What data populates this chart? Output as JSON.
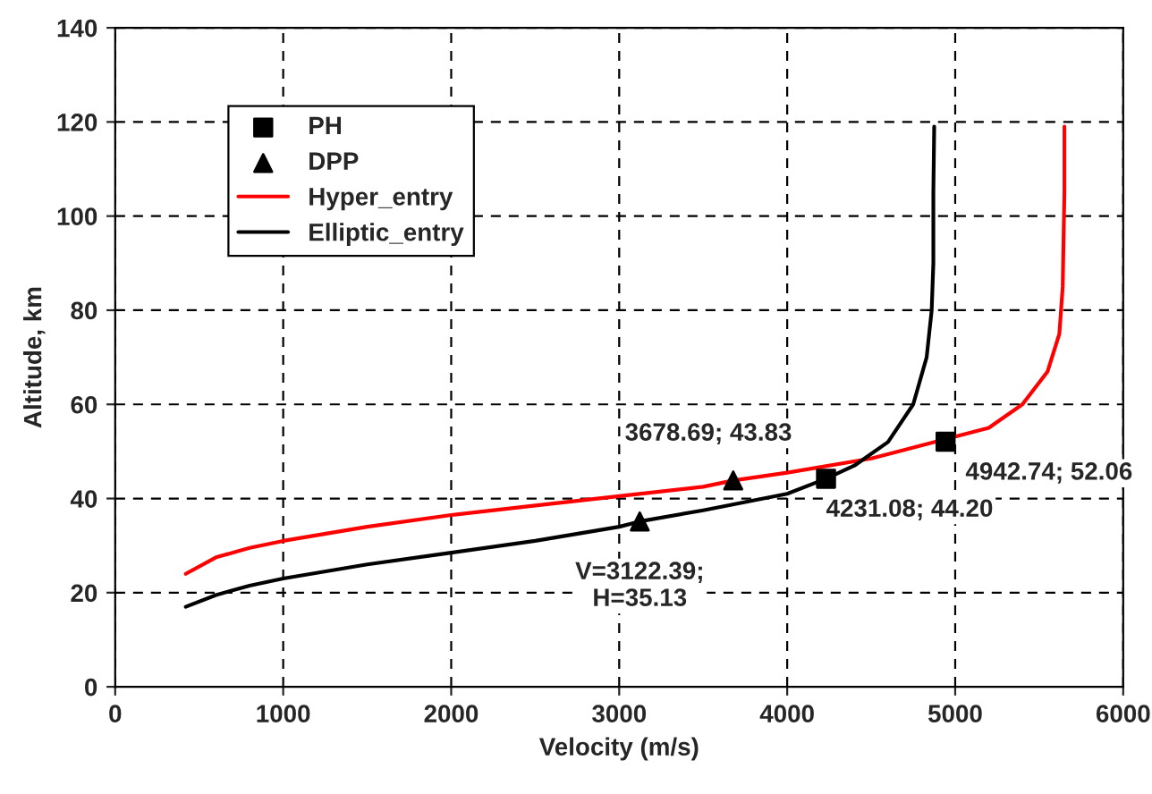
{
  "chart_data": {
    "type": "line",
    "xlabel": "Velocity (m/s)",
    "ylabel": "Altitude, km",
    "xlim": [
      0,
      6000
    ],
    "xticks": [
      0,
      1000,
      2000,
      3000,
      4000,
      5000,
      6000
    ],
    "ylim": [
      0,
      140
    ],
    "yticks": [
      0,
      20,
      40,
      60,
      80,
      100,
      120,
      140
    ],
    "grid": true,
    "legend": "top left",
    "series": [
      {
        "name": "PH",
        "type": "scatter",
        "marker": "square",
        "color": "#000000",
        "x": [
          4231.08,
          4942.74
        ],
        "values": [
          44.2,
          52.06
        ]
      },
      {
        "name": "DPP",
        "type": "scatter",
        "marker": "triangle",
        "color": "#000000",
        "x": [
          3122.39,
          3678.69
        ],
        "values": [
          35.13,
          43.83
        ]
      },
      {
        "name": "Hyper_entry",
        "color": "#ff0000",
        "x": [
          420,
          600,
          800,
          1000,
          1500,
          2000,
          2500,
          3000,
          3500,
          3678.69,
          4000,
          4500,
          5200,
          5400,
          5550,
          5620,
          5640,
          5645,
          5650,
          5650
        ],
        "values": [
          24,
          27.5,
          29.5,
          31,
          34,
          36.5,
          38.5,
          40.5,
          42.5,
          43.83,
          45.5,
          48.5,
          55,
          60,
          67,
          75,
          85,
          95,
          105,
          119
        ]
      },
      {
        "name": "Elliptic_entry",
        "color": "#000000",
        "x": [
          420,
          600,
          800,
          1000,
          1500,
          2000,
          2500,
          3000,
          3122.39,
          3500,
          4000,
          4231.08,
          4400,
          4600,
          4750,
          4830,
          4860,
          4870,
          4870,
          4875
        ],
        "values": [
          17,
          19.5,
          21.5,
          23,
          26,
          28.5,
          31,
          34,
          35.13,
          37.5,
          41,
          44.2,
          47,
          52,
          60,
          70,
          80,
          90,
          105,
          119
        ]
      }
    ],
    "annotations": [
      {
        "text": "3678.69; 43.83",
        "x": 3678.69,
        "y": 43.83
      },
      {
        "text": "V=3122.39;\nH=35.13",
        "x": 3122.39,
        "y": 35.13
      },
      {
        "text": "4231.08; 44.20",
        "x": 4231.08,
        "y": 44.2
      },
      {
        "text": "4942.74; 52.06",
        "x": 4942.74,
        "y": 52.06
      }
    ]
  }
}
